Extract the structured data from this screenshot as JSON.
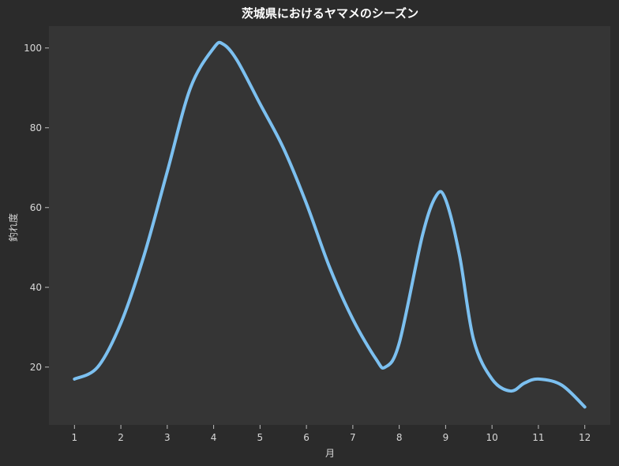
{
  "chart_data": {
    "type": "line",
    "title": "茨城県におけるヤマメのシーズン",
    "xlabel": "月",
    "ylabel": "釣れ度",
    "x_ticks": [
      "1",
      "2",
      "3",
      "4",
      "5",
      "6",
      "7",
      "8",
      "9",
      "10",
      "11",
      "12"
    ],
    "y_ticks": [
      "20",
      "40",
      "60",
      "80",
      "100"
    ],
    "xlim": [
      0.45,
      12.55
    ],
    "ylim": [
      5.5,
      105.5
    ],
    "grid": false,
    "legend": "none",
    "series": [
      {
        "color": "#7cc0f0",
        "x": [
          1,
          1.5,
          2,
          2.5,
          3,
          3.5,
          4,
          4.2,
          4.5,
          5,
          5.5,
          6,
          6.5,
          7,
          7.5,
          7.7,
          8,
          8.5,
          8.8,
          9,
          9.3,
          9.6,
          10,
          10.4,
          10.7,
          11,
          11.5,
          12
        ],
        "y": [
          17,
          20,
          31,
          48,
          69,
          90,
          100,
          101,
          97,
          86,
          75,
          61,
          45,
          32,
          22,
          20,
          26,
          53,
          63,
          62,
          48,
          27,
          17,
          14,
          16,
          17,
          15.5,
          10
        ]
      }
    ],
    "colors": {
      "background": "#2b2b2b",
      "plot_background": "#353535",
      "axis_text": "#d8d8d8",
      "title_text": "#ffffff"
    }
  }
}
